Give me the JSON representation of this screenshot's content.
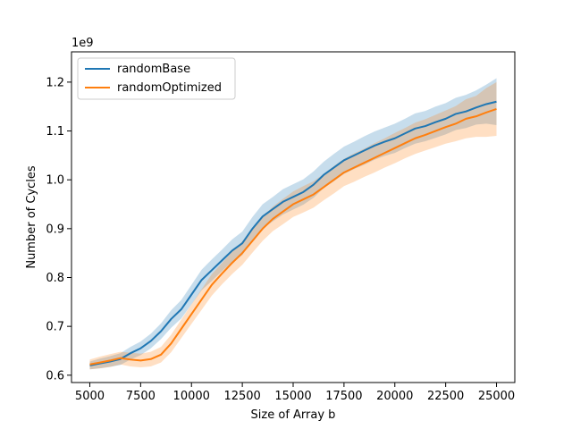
{
  "chart_data": {
    "type": "line",
    "title": "",
    "xlabel": "Size of Array b",
    "ylabel": "Number of Cycles",
    "y_offset_label": "1e9",
    "xlim": [
      4100,
      25900
    ],
    "ylim": [
      0.585,
      1.262
    ],
    "x_ticks": [
      5000,
      7500,
      10000,
      12500,
      15000,
      17500,
      20000,
      22500,
      25000
    ],
    "x_tick_labels": [
      "5000",
      "7500",
      "10000",
      "12500",
      "15000",
      "17500",
      "20000",
      "22500",
      "25000"
    ],
    "y_ticks": [
      0.6,
      0.7,
      0.8,
      0.9,
      1.0,
      1.1,
      1.2
    ],
    "y_tick_labels": [
      "0.6",
      "0.7",
      "0.8",
      "0.9",
      "1.0",
      "1.1",
      "1.2"
    ],
    "grid": false,
    "legend_position": "top-left",
    "shaded_band": "confidence interval",
    "series": [
      {
        "name": "randomBase",
        "color": "#1f77b4",
        "x": [
          5000,
          5500,
          6000,
          6500,
          7000,
          7500,
          8000,
          8500,
          9000,
          9500,
          10000,
          10500,
          11000,
          11500,
          12000,
          12500,
          13000,
          13500,
          14000,
          14500,
          15000,
          15500,
          16000,
          16500,
          17000,
          17500,
          18000,
          18500,
          19000,
          19500,
          20000,
          20500,
          21000,
          21500,
          22000,
          22500,
          23000,
          23500,
          24000,
          24500,
          25000
        ],
        "y": [
          0.62,
          0.624,
          0.628,
          0.633,
          0.645,
          0.655,
          0.67,
          0.69,
          0.715,
          0.735,
          0.765,
          0.795,
          0.815,
          0.835,
          0.855,
          0.87,
          0.9,
          0.925,
          0.94,
          0.955,
          0.965,
          0.975,
          0.99,
          1.01,
          1.025,
          1.04,
          1.05,
          1.06,
          1.07,
          1.078,
          1.085,
          1.095,
          1.105,
          1.11,
          1.118,
          1.125,
          1.135,
          1.14,
          1.148,
          1.155,
          1.16
        ],
        "band": [
          0.008,
          0.01,
          0.011,
          0.012,
          0.013,
          0.014,
          0.015,
          0.016,
          0.018,
          0.019,
          0.02,
          0.021,
          0.022,
          0.022,
          0.023,
          0.024,
          0.024,
          0.025,
          0.025,
          0.026,
          0.026,
          0.026,
          0.027,
          0.027,
          0.028,
          0.028,
          0.028,
          0.029,
          0.029,
          0.029,
          0.03,
          0.03,
          0.031,
          0.031,
          0.032,
          0.032,
          0.033,
          0.034,
          0.035,
          0.04,
          0.048
        ]
      },
      {
        "name": "randomOptimized",
        "color": "#ff7f0e",
        "x": [
          5000,
          5500,
          6000,
          6500,
          7000,
          7500,
          8000,
          8500,
          9000,
          9500,
          10000,
          10500,
          11000,
          11500,
          12000,
          12500,
          13000,
          13500,
          14000,
          14500,
          15000,
          15500,
          16000,
          16500,
          17000,
          17500,
          18000,
          18500,
          19000,
          19500,
          20000,
          20500,
          21000,
          21500,
          22000,
          22500,
          23000,
          23500,
          24000,
          24500,
          25000
        ],
        "y": [
          0.622,
          0.626,
          0.63,
          0.635,
          0.632,
          0.63,
          0.633,
          0.642,
          0.665,
          0.695,
          0.725,
          0.755,
          0.785,
          0.808,
          0.83,
          0.85,
          0.875,
          0.9,
          0.92,
          0.935,
          0.95,
          0.96,
          0.97,
          0.985,
          1.0,
          1.015,
          1.025,
          1.035,
          1.045,
          1.055,
          1.065,
          1.075,
          1.085,
          1.092,
          1.1,
          1.108,
          1.115,
          1.125,
          1.13,
          1.138,
          1.145
        ],
        "band": [
          0.01,
          0.012,
          0.013,
          0.013,
          0.014,
          0.014,
          0.015,
          0.016,
          0.018,
          0.019,
          0.02,
          0.021,
          0.022,
          0.022,
          0.023,
          0.024,
          0.024,
          0.025,
          0.025,
          0.026,
          0.026,
          0.027,
          0.027,
          0.027,
          0.028,
          0.028,
          0.029,
          0.029,
          0.03,
          0.03,
          0.031,
          0.031,
          0.032,
          0.032,
          0.033,
          0.034,
          0.036,
          0.04,
          0.042,
          0.05,
          0.055
        ]
      }
    ]
  }
}
